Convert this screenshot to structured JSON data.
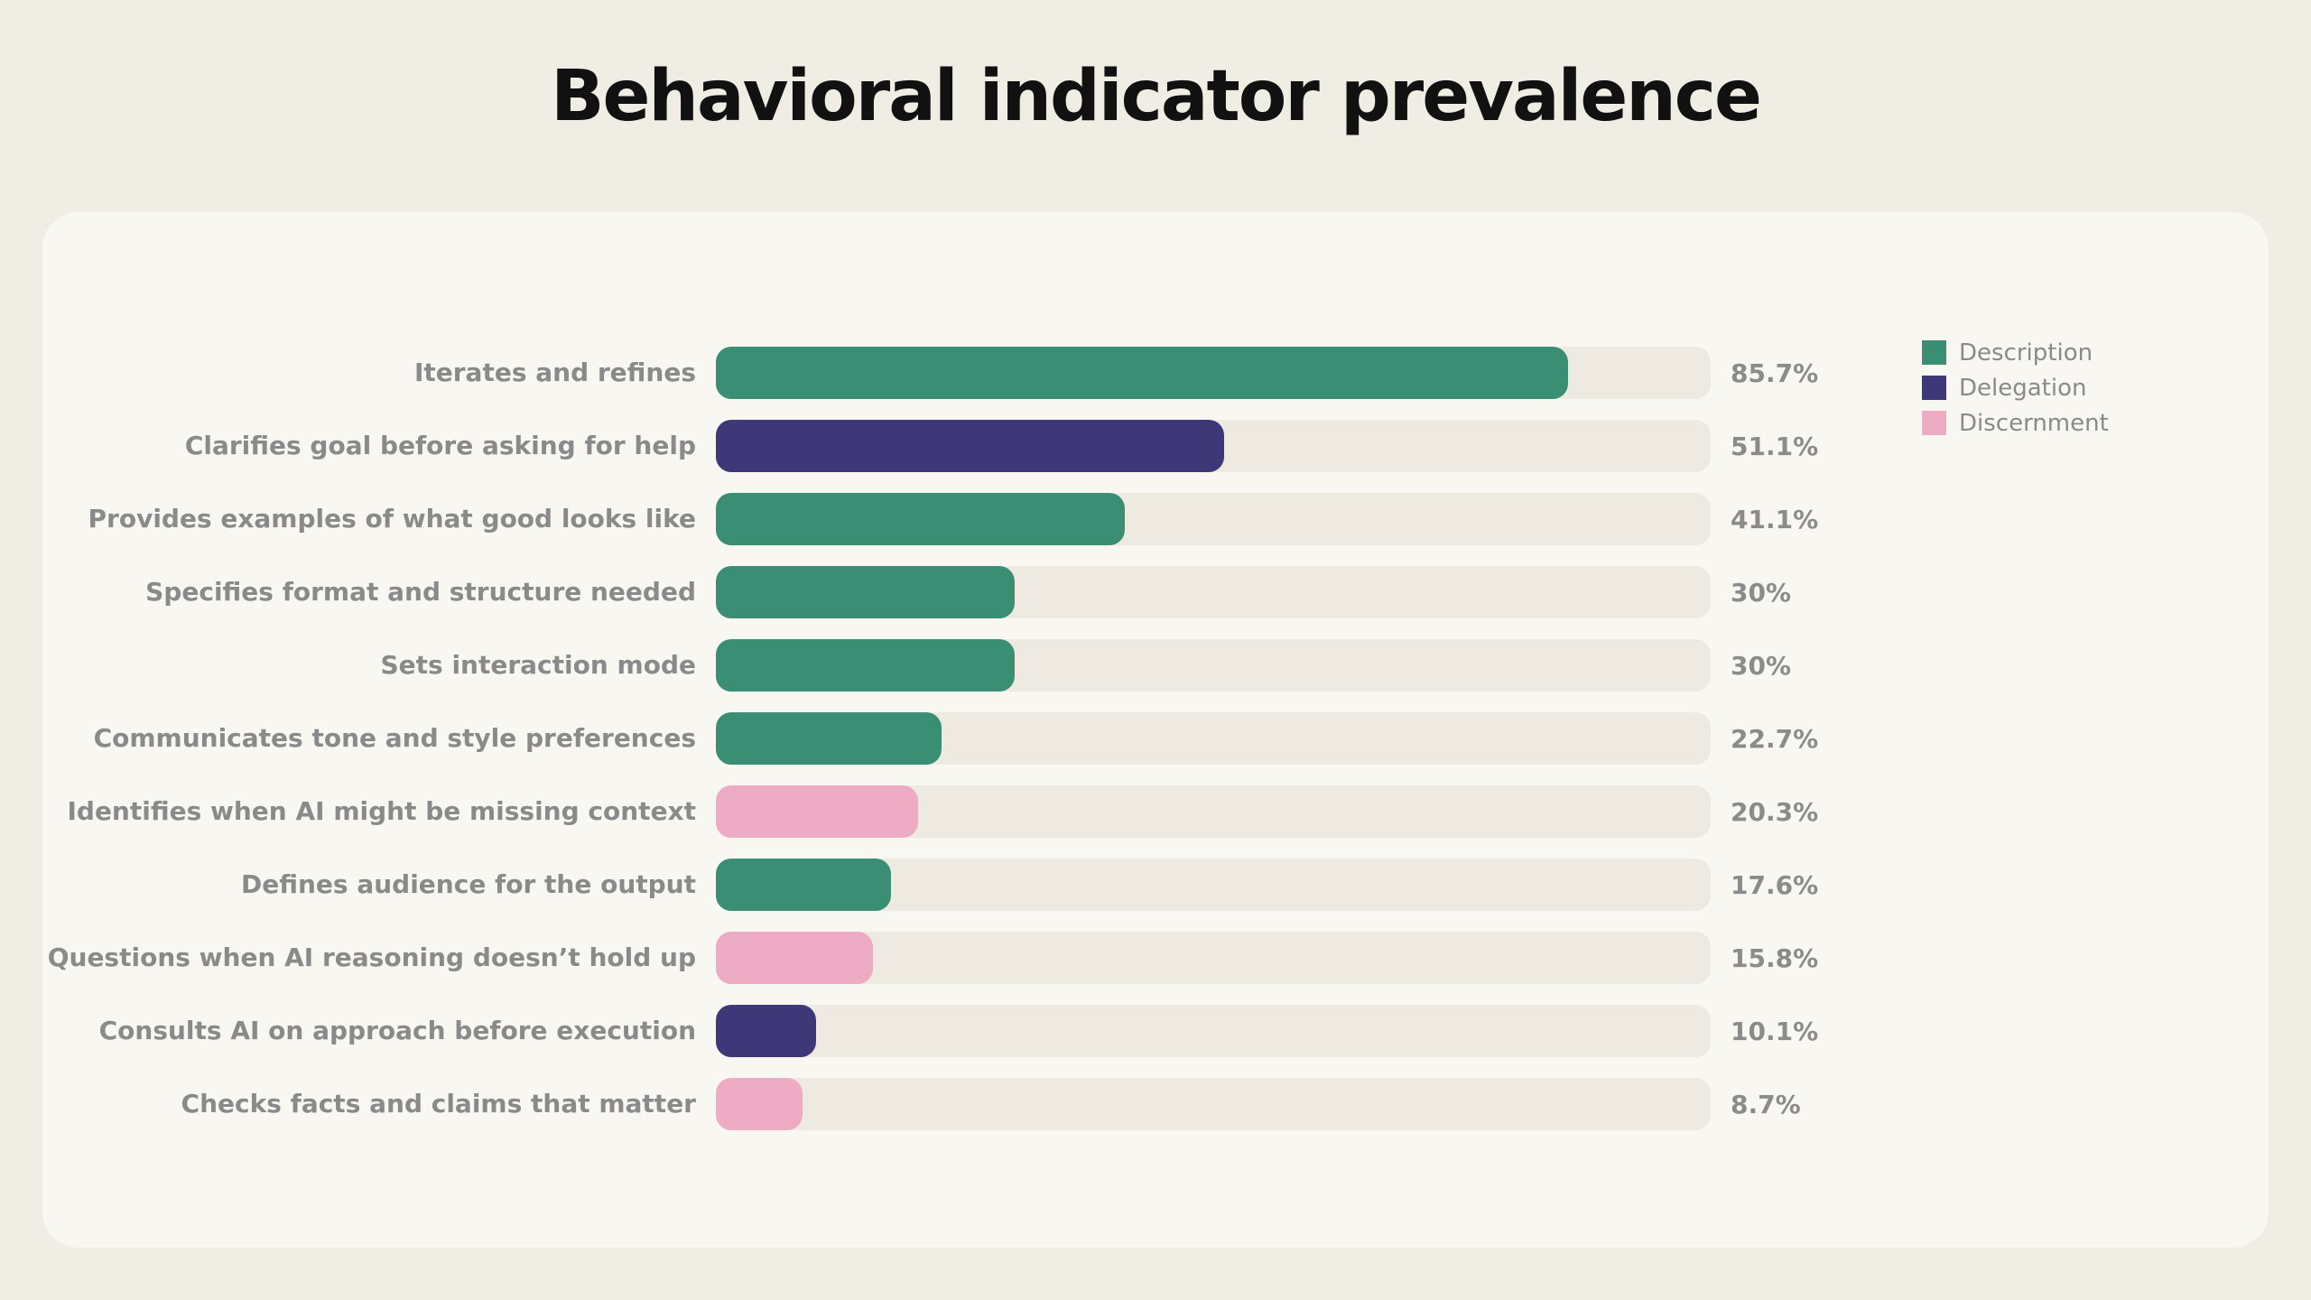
{
  "colors": {
    "page_bg": "#F0EDE4",
    "card_bg": "#F9F7F2",
    "track": "#EFEAE1",
    "title_text": "#111111",
    "label_text": "#8A8A8A",
    "value_text": "#8B8B8B",
    "legend_text": "#8A8A8A",
    "description": "#3A8E74",
    "delegation": "#3E3878",
    "discernment": "#EEACC4"
  },
  "chart_data": {
    "type": "bar",
    "orientation": "horizontal",
    "title": "Behavioral indicator prevalence",
    "xlabel": "",
    "ylabel": "",
    "xlim": [
      0,
      100
    ],
    "grid": false,
    "legend_position": "right",
    "track_color": "#EFEAE1",
    "categories": [
      "Iterates and refines",
      "Clarifies goal before asking for help",
      "Provides examples of what good looks like",
      "Specifies format and structure needed",
      "Sets interaction mode",
      "Communicates tone and style preferences",
      "Identifies when AI might be missing context",
      "Defines audience for the output",
      "Questions when AI reasoning doesn’t hold up",
      "Consults AI on approach before execution",
      "Checks facts and claims that matter"
    ],
    "values": [
      85.7,
      51.1,
      41.1,
      30,
      30,
      22.7,
      20.3,
      17.6,
      15.8,
      10.1,
      8.7
    ],
    "value_labels": [
      "85.7%",
      "51.1%",
      "41.1%",
      "30%",
      "30%",
      "22.7%",
      "20.3%",
      "17.6%",
      "15.8%",
      "10.1%",
      "8.7%"
    ],
    "bar_series": [
      "Description",
      "Delegation",
      "Description",
      "Description",
      "Description",
      "Description",
      "Discernment",
      "Description",
      "Discernment",
      "Delegation",
      "Discernment"
    ],
    "legend": [
      {
        "name": "Description",
        "color": "#3A8E74"
      },
      {
        "name": "Delegation",
        "color": "#3E3878"
      },
      {
        "name": "Discernment",
        "color": "#EEACC4"
      }
    ]
  }
}
